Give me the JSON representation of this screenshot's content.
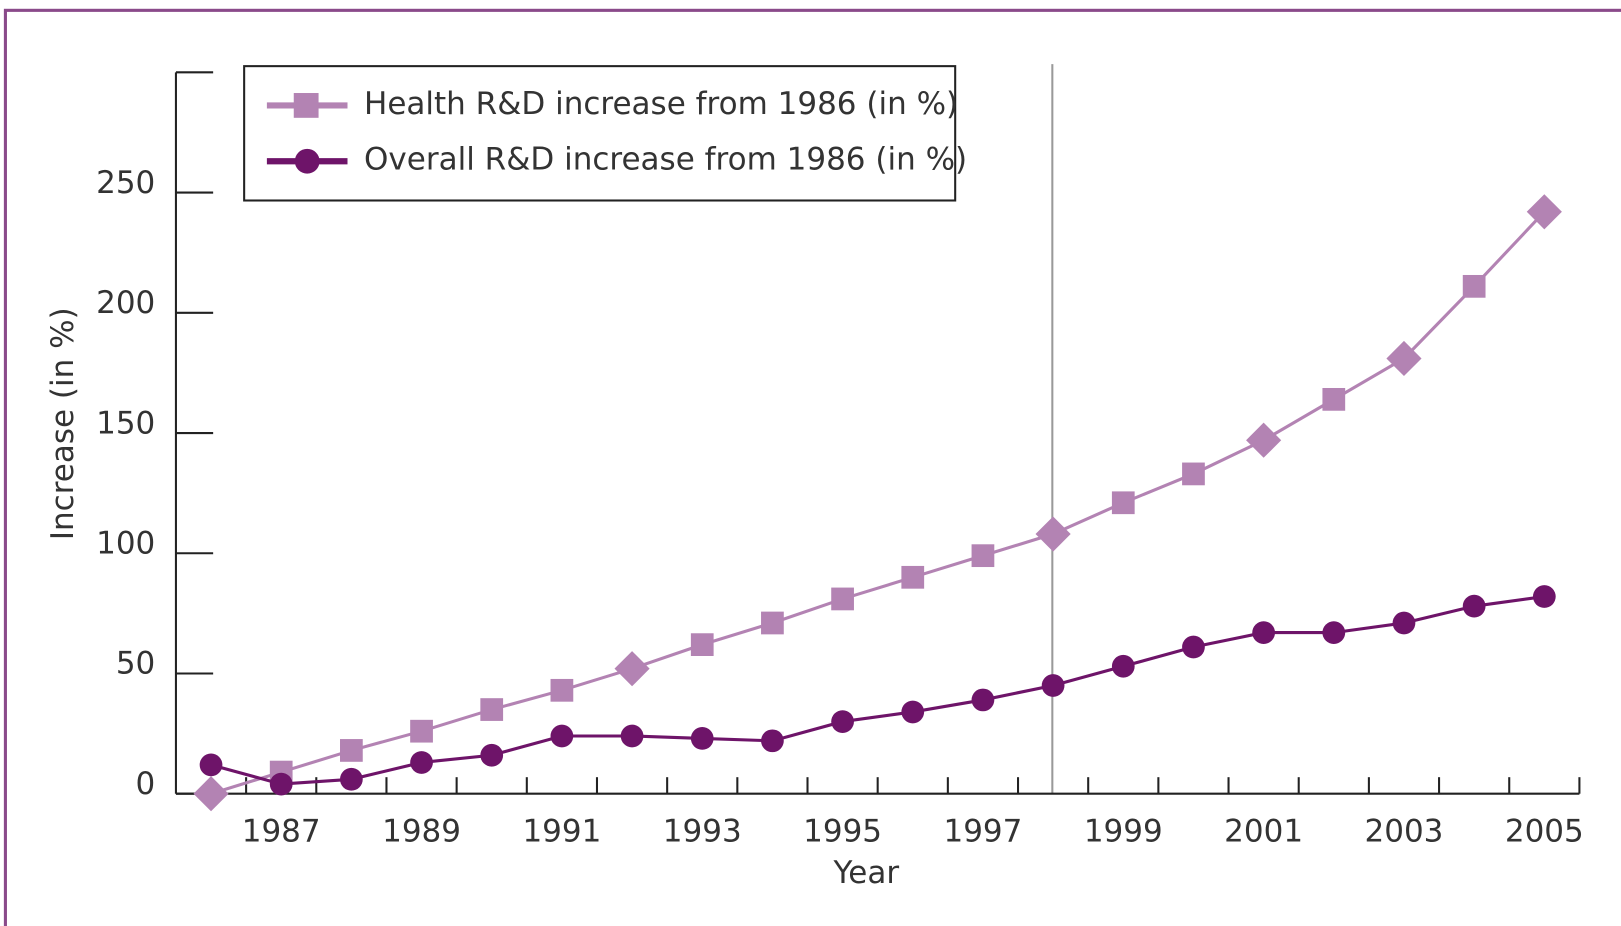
{
  "chart_data": {
    "type": "line",
    "y_label": "Increase (in %)",
    "x_label": "Year",
    "categories": [
      null,
      "1987",
      null,
      "1989",
      null,
      "1991",
      null,
      "1993",
      null,
      "1995",
      null,
      "1997",
      null,
      "1999",
      null,
      "2001",
      null,
      "2003",
      null,
      "2005"
    ],
    "series": [
      {
        "name": "Health R&D increase from 1986 (in %)",
        "color": "#b383b3",
        "markers": [
          "diamond",
          "square",
          "square",
          "square",
          "square",
          "square",
          "diamond",
          "square",
          "square",
          "square",
          "square",
          "square",
          "diamond",
          "square",
          "square",
          "diamond",
          "square",
          "diamond",
          "square",
          "diamond"
        ],
        "values": [
          0,
          9,
          18,
          26,
          35,
          43,
          52,
          62,
          71,
          81,
          90,
          99,
          108,
          121,
          133,
          147,
          164,
          181,
          211,
          242
        ]
      },
      {
        "name": "Overall R&D increase from 1986 (in %)",
        "color": "#6e1469",
        "values": [
          12,
          4,
          6,
          13,
          16,
          24,
          24,
          23,
          22,
          30,
          34,
          39,
          45,
          53,
          61,
          67,
          67,
          71,
          78,
          82
        ]
      }
    ],
    "ylim": [
      0,
      300
    ],
    "yticks": [
      0,
      50,
      100,
      150,
      200,
      250
    ]
  }
}
